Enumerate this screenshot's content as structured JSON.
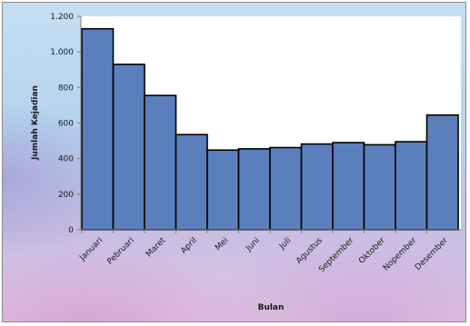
{
  "chart_data": {
    "type": "bar",
    "title": "",
    "xlabel": "Bulan",
    "ylabel": "Jumlah Kejadian",
    "categories": [
      "Januari",
      "Pebruari",
      "Maret",
      "April",
      "Mei",
      "Juni",
      "Juli",
      "Agustus",
      "September",
      "Oktober",
      "Nopember",
      "Desember"
    ],
    "values": [
      1130,
      930,
      755,
      535,
      448,
      455,
      462,
      482,
      490,
      478,
      495,
      645
    ],
    "ylim": [
      0,
      1200
    ],
    "yticks": [
      0,
      200,
      400,
      600,
      800,
      1000,
      1200
    ],
    "ytick_labels": [
      "0",
      "200",
      "400",
      "600",
      "800",
      "1.000",
      "1.200"
    ],
    "grid": false,
    "legend": "none",
    "colors": {
      "bar_fill": "#5b7fbd",
      "bar_stroke": "#000000",
      "plot_background": "#ffffff"
    }
  }
}
